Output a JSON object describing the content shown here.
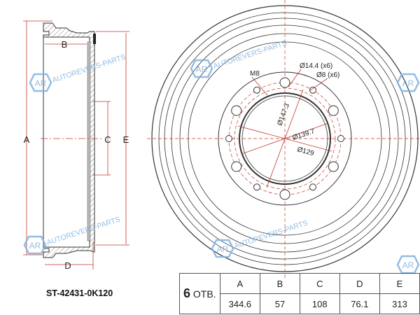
{
  "part_number": "ST-42431-0K120",
  "watermark": {
    "logo": "AR",
    "text": "AUTOREVERS-PARTS",
    "color": "#7fb2e0"
  },
  "side_view": {
    "labels": {
      "A": "A",
      "B": "B",
      "C": "C",
      "D": "D",
      "E": "E"
    }
  },
  "front_view": {
    "callouts": [
      "Ø14.4 (x6)",
      "Ø8 (x6)",
      "M8",
      "Ø147.3",
      "Ø139.7",
      "Ø129"
    ]
  },
  "table": {
    "holes_count": "6",
    "holes_unit": "ОТВ.",
    "headers": [
      "A",
      "B",
      "C",
      "D",
      "E"
    ],
    "values": [
      "344.6",
      "57",
      "108",
      "76.1",
      "313"
    ]
  },
  "colors": {
    "dimension": "#c0392b",
    "outline": "#333333"
  }
}
